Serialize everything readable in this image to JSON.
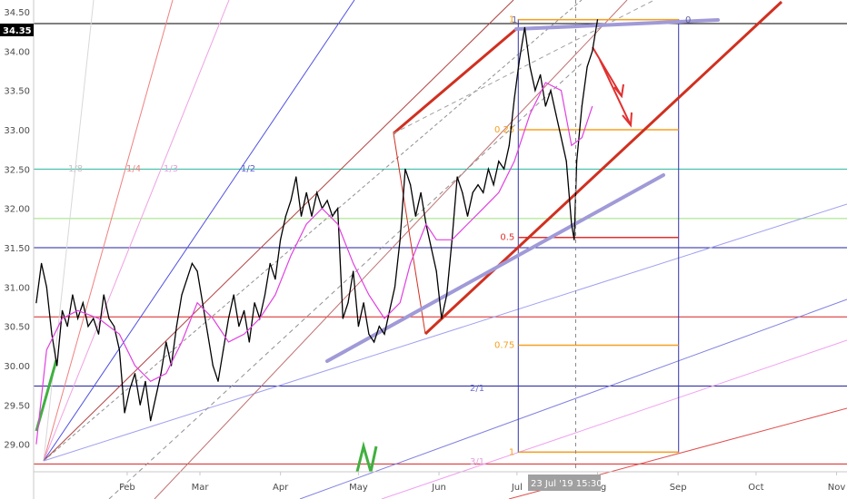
{
  "chart_data": {
    "type": "line",
    "title": "",
    "xlabel": "",
    "ylabel": "",
    "ylim": [
      28.65,
      34.65
    ],
    "y_ticks": [
      "34.50",
      "34.00",
      "33.50",
      "33.00",
      "32.50",
      "32.00",
      "31.50",
      "31.00",
      "30.50",
      "30.00",
      "29.50",
      "29.00"
    ],
    "y_tick_values": [
      34.5,
      34.0,
      33.5,
      33.0,
      32.5,
      32.0,
      31.5,
      31.0,
      30.5,
      30.0,
      29.5,
      29.0
    ],
    "x_ticks": [
      "Feb",
      "Mar",
      "Apr",
      "May",
      "Jun",
      "Jul",
      "Aug",
      "Sep",
      "Oct",
      "Nov"
    ],
    "x_tick_days": [
      31,
      59,
      90,
      120,
      151,
      181,
      212,
      243,
      273,
      304
    ],
    "x_range_days": [
      -5,
      308
    ],
    "price_label": "34.35",
    "price_value": 34.35,
    "crosshair_label": "23 Jul '19  15:30",
    "crosshair_day": 203.6,
    "series": [
      {
        "kind": "price",
        "color": "#000000",
        "points": [
          [
            -4,
            30.8
          ],
          [
            -2,
            31.3
          ],
          [
            0,
            31.0
          ],
          [
            2,
            30.4
          ],
          [
            4,
            30.0
          ],
          [
            6,
            30.7
          ],
          [
            8,
            30.5
          ],
          [
            10,
            30.9
          ],
          [
            12,
            30.6
          ],
          [
            14,
            30.8
          ],
          [
            16,
            30.5
          ],
          [
            18,
            30.6
          ],
          [
            20,
            30.4
          ],
          [
            22,
            30.9
          ],
          [
            24,
            30.6
          ],
          [
            26,
            30.5
          ],
          [
            28,
            30.2
          ],
          [
            30,
            29.4
          ],
          [
            32,
            29.7
          ],
          [
            34,
            29.9
          ],
          [
            36,
            29.5
          ],
          [
            38,
            29.8
          ],
          [
            40,
            29.3
          ],
          [
            42,
            29.6
          ],
          [
            44,
            29.9
          ],
          [
            46,
            30.3
          ],
          [
            48,
            30.0
          ],
          [
            50,
            30.5
          ],
          [
            52,
            30.9
          ],
          [
            54,
            31.1
          ],
          [
            56,
            31.3
          ],
          [
            58,
            31.2
          ],
          [
            60,
            30.8
          ],
          [
            62,
            30.4
          ],
          [
            64,
            30.0
          ],
          [
            66,
            29.8
          ],
          [
            68,
            30.2
          ],
          [
            70,
            30.6
          ],
          [
            72,
            30.9
          ],
          [
            74,
            30.5
          ],
          [
            76,
            30.7
          ],
          [
            78,
            30.3
          ],
          [
            80,
            30.8
          ],
          [
            82,
            30.6
          ],
          [
            84,
            30.9
          ],
          [
            86,
            31.3
          ],
          [
            88,
            31.1
          ],
          [
            90,
            31.6
          ],
          [
            92,
            31.9
          ],
          [
            94,
            32.1
          ],
          [
            96,
            32.4
          ],
          [
            98,
            31.9
          ],
          [
            100,
            32.2
          ],
          [
            102,
            31.9
          ],
          [
            104,
            32.2
          ],
          [
            106,
            32.0
          ],
          [
            108,
            32.1
          ],
          [
            110,
            31.9
          ],
          [
            112,
            32.0
          ],
          [
            114,
            30.6
          ],
          [
            116,
            30.8
          ],
          [
            118,
            31.2
          ],
          [
            120,
            30.5
          ],
          [
            122,
            30.8
          ],
          [
            124,
            30.4
          ],
          [
            126,
            30.3
          ],
          [
            128,
            30.5
          ],
          [
            130,
            30.4
          ],
          [
            132,
            30.7
          ],
          [
            134,
            31.0
          ],
          [
            136,
            31.6
          ],
          [
            138,
            32.5
          ],
          [
            140,
            32.3
          ],
          [
            142,
            31.9
          ],
          [
            144,
            32.2
          ],
          [
            146,
            31.8
          ],
          [
            148,
            31.5
          ],
          [
            150,
            31.2
          ],
          [
            152,
            30.6
          ],
          [
            154,
            30.9
          ],
          [
            156,
            31.6
          ],
          [
            158,
            32.4
          ],
          [
            160,
            32.2
          ],
          [
            162,
            31.9
          ],
          [
            164,
            32.2
          ],
          [
            166,
            32.3
          ],
          [
            168,
            32.2
          ],
          [
            170,
            32.5
          ],
          [
            172,
            32.3
          ],
          [
            174,
            32.6
          ],
          [
            176,
            32.5
          ],
          [
            178,
            32.8
          ],
          [
            180,
            33.4
          ],
          [
            182,
            33.9
          ],
          [
            184,
            34.3
          ],
          [
            186,
            33.8
          ],
          [
            188,
            33.5
          ],
          [
            190,
            33.7
          ],
          [
            192,
            33.3
          ],
          [
            194,
            33.5
          ],
          [
            196,
            33.2
          ],
          [
            198,
            32.9
          ],
          [
            200,
            32.6
          ],
          [
            202,
            31.8
          ],
          [
            203,
            31.6
          ],
          [
            204,
            32.6
          ],
          [
            206,
            33.3
          ],
          [
            208,
            33.8
          ],
          [
            210,
            34.0
          ],
          [
            212,
            34.4
          ]
        ]
      },
      {
        "kind": "moving-average",
        "color": "#e040e0",
        "points": [
          [
            -4,
            29.0
          ],
          [
            0,
            30.2
          ],
          [
            6,
            30.6
          ],
          [
            12,
            30.7
          ],
          [
            20,
            30.6
          ],
          [
            28,
            30.4
          ],
          [
            34,
            30.0
          ],
          [
            40,
            29.8
          ],
          [
            46,
            29.9
          ],
          [
            52,
            30.3
          ],
          [
            58,
            30.8
          ],
          [
            64,
            30.6
          ],
          [
            70,
            30.3
          ],
          [
            76,
            30.4
          ],
          [
            82,
            30.6
          ],
          [
            88,
            30.9
          ],
          [
            94,
            31.4
          ],
          [
            100,
            31.8
          ],
          [
            106,
            32.0
          ],
          [
            112,
            31.8
          ],
          [
            118,
            31.3
          ],
          [
            124,
            30.9
          ],
          [
            130,
            30.6
          ],
          [
            136,
            30.8
          ],
          [
            140,
            31.3
          ],
          [
            146,
            31.8
          ],
          [
            150,
            31.6
          ],
          [
            156,
            31.6
          ],
          [
            162,
            31.8
          ],
          [
            168,
            32.0
          ],
          [
            174,
            32.2
          ],
          [
            180,
            32.6
          ],
          [
            186,
            33.2
          ],
          [
            192,
            33.6
          ],
          [
            198,
            33.5
          ],
          [
            202,
            32.8
          ],
          [
            206,
            32.9
          ],
          [
            210,
            33.3
          ]
        ]
      }
    ],
    "fib_levels": [
      {
        "label": "1",
        "value": 34.4,
        "color": "#f5a020"
      },
      {
        "label": "0.25",
        "value": 33.0,
        "color": "#f5a020"
      },
      {
        "label": "0.5",
        "value": 31.63,
        "color": "#e03030"
      },
      {
        "label": "0.75",
        "value": 30.26,
        "color": "#f5a020"
      },
      {
        "label": "1",
        "value": 28.9,
        "color": "#f5a020"
      }
    ],
    "fan_labels": [
      "1/8",
      "1/4",
      "1/3",
      "1/2",
      "2/1",
      "3/1"
    ],
    "box_labels": [
      "1",
      "0"
    ],
    "horizontal_lines": [
      {
        "value": 34.35,
        "color": "#000000"
      },
      {
        "value": 32.5,
        "color": "#26b89a"
      },
      {
        "value": 31.87,
        "color": "#9be07a"
      },
      {
        "value": 31.5,
        "color": "#2323a0"
      },
      {
        "value": 30.62,
        "color": "#d62020"
      },
      {
        "value": 29.74,
        "color": "#2323a0"
      },
      {
        "value": 28.75,
        "color": "#d62020"
      }
    ]
  }
}
